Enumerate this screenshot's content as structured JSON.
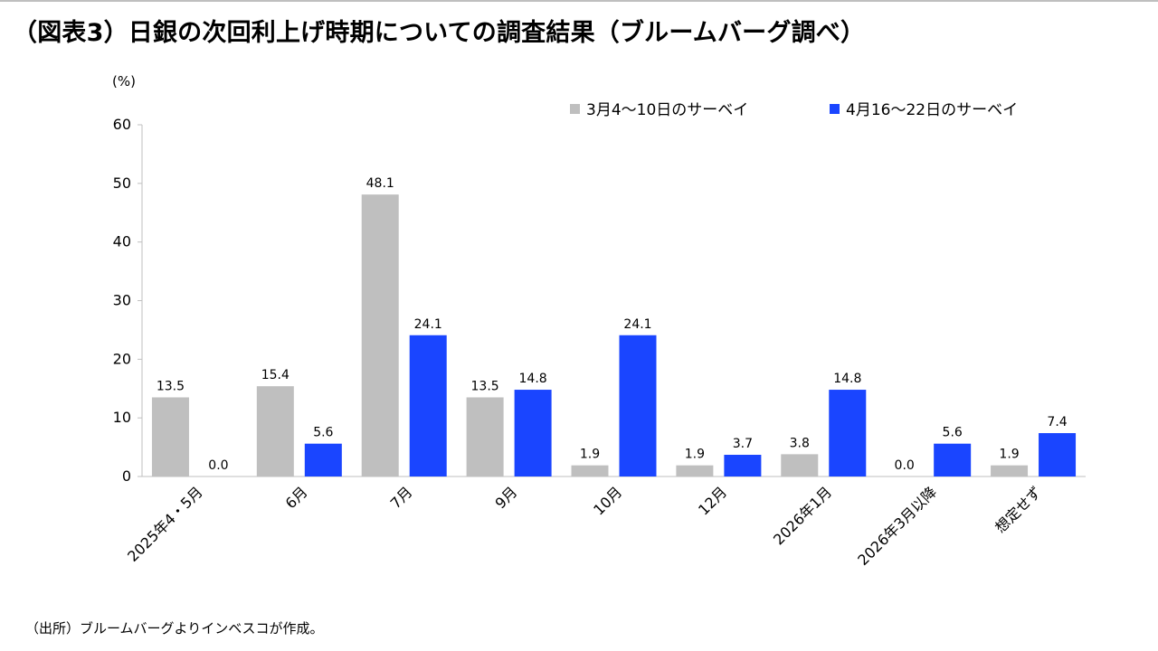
{
  "title": "（図表3）日銀の次回利上げ時期についての調査結果（ブルームバーグ調べ）",
  "footnote": "（出所）ブルームバーグよりインベスコが作成。",
  "colors": {
    "series1": "#bfbfbf",
    "series2": "#1a45ff",
    "axis": "#bfbfbf",
    "text": "#000000"
  },
  "chart_data": {
    "type": "bar",
    "ylabel": "(%)",
    "ylim": [
      0,
      60
    ],
    "yticks": [
      "0",
      "10",
      "20",
      "30",
      "40",
      "50",
      "60"
    ],
    "grid": false,
    "legend_position": "top-right",
    "categories": [
      "2025年4・5月",
      "6月",
      "7月",
      "9月",
      "10月",
      "12月",
      "2026年1月",
      "2026年3月以降",
      "想定せず"
    ],
    "series": [
      {
        "name": "3月4～10日のサーベイ",
        "values": [
          13.5,
          15.4,
          48.1,
          13.5,
          1.9,
          1.9,
          3.8,
          0.0,
          1.9
        ],
        "labels": [
          "13.5",
          "15.4",
          "48.1",
          "13.5",
          "1.9",
          "1.9",
          "3.8",
          "0.0",
          "1.9"
        ]
      },
      {
        "name": "4月16～22日のサーベイ",
        "values": [
          0.0,
          5.6,
          24.1,
          14.8,
          24.1,
          3.7,
          14.8,
          5.6,
          7.4
        ],
        "labels": [
          "0.0",
          "5.6",
          "24.1",
          "14.8",
          "24.1",
          "3.7",
          "14.8",
          "5.6",
          "7.4"
        ]
      }
    ]
  }
}
